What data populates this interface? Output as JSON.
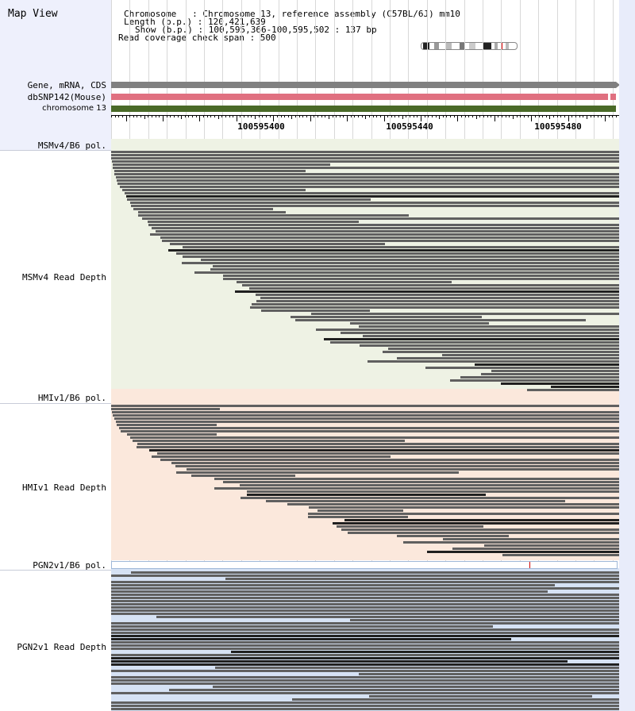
{
  "map_title": "Map View",
  "info": {
    "chromosome_label": "Chromosome   : Chromosome 13, reference assembly (C57BL/6J) mm10",
    "length_label": "Length (b.p.) : 120,421,639",
    "show_label": "Show (b.p.) : 100,595,366-100,595,502 : 137 bp",
    "coverage_label": "Read coverage check span : 500"
  },
  "tracks": {
    "gene": "Gene, mRNA, CDS",
    "dbsnp": "dbSNP142(Mouse)",
    "chromosome": "chromosome 13"
  },
  "ruler": {
    "labels": [
      "100595400",
      "100595440",
      "100595480"
    ]
  },
  "sections": [
    {
      "pol_label": "MSMv4/B6 pol.",
      "depth_label": "MSMv4 Read Depth",
      "color": "#eef2e4"
    },
    {
      "pol_label": "HMIv1/B6 pol.",
      "depth_label": "HMIv1 Read Depth",
      "color": "#fbe8dc"
    },
    {
      "pol_label": "PGN2v1/B6 pol.",
      "depth_label": "PGN2v1 Read Depth",
      "color": "#d6e2f4"
    }
  ],
  "colors": {
    "gene_bar": "#808080",
    "dbsnp_bar": "#e07080",
    "chrom_bar": "#4a6a28",
    "read_gray": "#606060",
    "read_dark": "#202020",
    "header_bg": "#eef0fc"
  }
}
